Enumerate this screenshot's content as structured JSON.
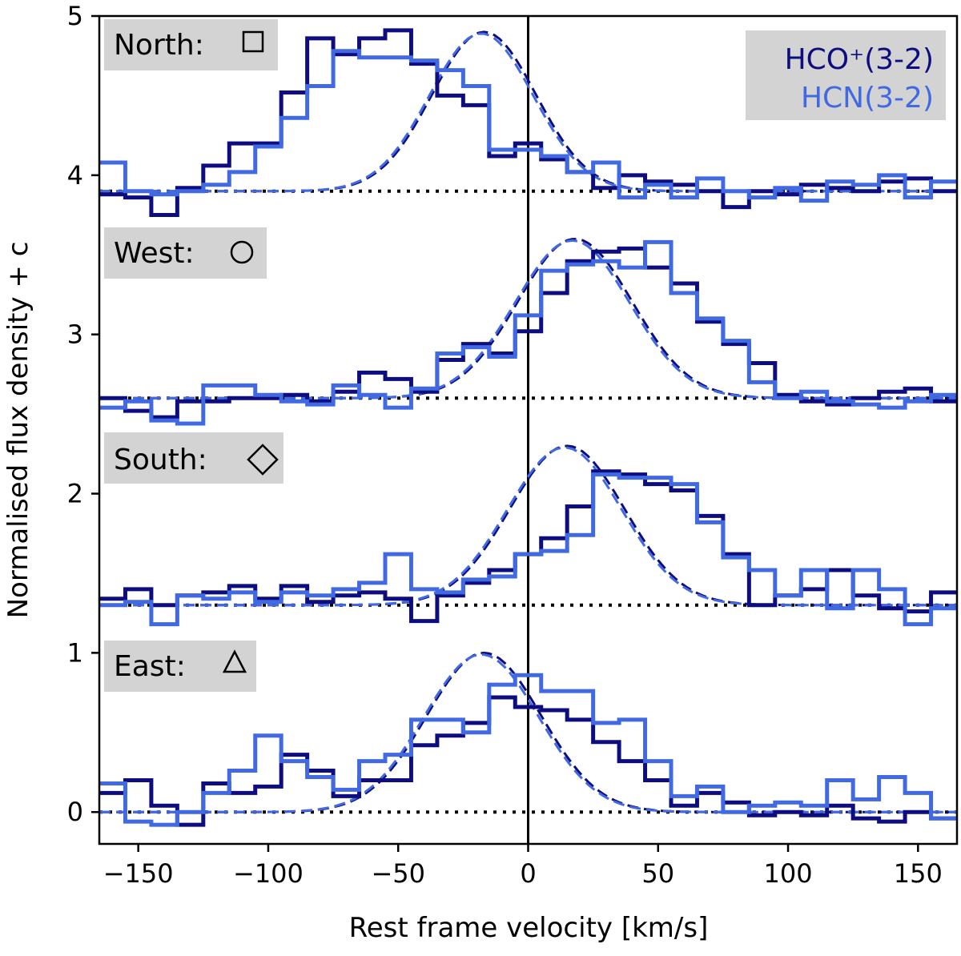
{
  "chart_data": {
    "type": "line",
    "xlabel": "Rest frame velocity [km/s]",
    "ylabel": "Normalised flux density + c",
    "xlim": [
      -165,
      165
    ],
    "ylim": [
      -0.2,
      5.0
    ],
    "xticks": [
      -150,
      -100,
      -50,
      0,
      50,
      100,
      150
    ],
    "xtick_labels": [
      "−150",
      "−100",
      "−50",
      "0",
      "50",
      "100",
      "150"
    ],
    "yticks": [
      0,
      1,
      2,
      3,
      4,
      5
    ],
    "ytick_labels": [
      "0",
      "1",
      "2",
      "3",
      "4",
      "5"
    ],
    "vertical_line_x": 0,
    "legend": {
      "placement": "top-right",
      "entries": [
        {
          "label": "HCO⁺(3-2)",
          "color": "#0d0d80"
        },
        {
          "label": "HCN(3-2)",
          "color": "#4169e1"
        }
      ]
    },
    "colors": {
      "hco": "#0d0d80",
      "hcn": "#4169e1",
      "label_box": "#d3d3d3"
    },
    "bin_edges": [
      -165,
      -155,
      -145,
      -135,
      -125,
      -115,
      -105,
      -95,
      -85,
      -75,
      -65,
      -55,
      -45,
      -35,
      -25,
      -15,
      -5,
      5,
      15,
      25,
      35,
      45,
      55,
      65,
      75,
      85,
      95,
      105,
      115,
      125,
      135,
      145,
      155,
      165
    ],
    "panels": [
      {
        "region": "North",
        "marker": "□",
        "baseline": 3.9,
        "hco_values": [
          3.88,
          3.86,
          3.75,
          3.92,
          4.06,
          4.2,
          4.2,
          4.52,
          4.86,
          4.76,
          4.86,
          4.91,
          4.7,
          4.5,
          4.44,
          4.12,
          4.2,
          4.1,
          4.02,
          3.92,
          4.0,
          3.96,
          3.94,
          3.9,
          3.8,
          3.9,
          3.88,
          3.94,
          3.92,
          3.9,
          3.96,
          3.98,
          3.9
        ],
        "hcn_values": [
          4.08,
          3.9,
          3.88,
          3.9,
          3.94,
          4.02,
          4.18,
          4.36,
          4.56,
          4.78,
          4.74,
          4.74,
          4.72,
          4.66,
          4.56,
          4.16,
          4.16,
          4.12,
          4.02,
          4.08,
          3.86,
          3.94,
          3.86,
          3.98,
          3.9,
          3.86,
          3.92,
          3.84,
          3.96,
          3.94,
          4.0,
          3.86,
          3.96
        ],
        "fit_peak_x": -17,
        "fit_amplitude": 1.0,
        "fit_sigma": 20
      },
      {
        "region": "West",
        "marker": "○",
        "baseline": 2.6,
        "hco_values": [
          2.6,
          2.52,
          2.48,
          2.58,
          2.58,
          2.6,
          2.6,
          2.62,
          2.58,
          2.64,
          2.76,
          2.72,
          2.64,
          2.84,
          2.94,
          2.88,
          3.02,
          3.26,
          3.46,
          3.52,
          3.54,
          3.42,
          3.32,
          3.08,
          2.94,
          2.82,
          2.62,
          2.58,
          2.56,
          2.6,
          2.64,
          2.66,
          2.58
        ],
        "hcn_values": [
          2.54,
          2.58,
          2.46,
          2.44,
          2.68,
          2.68,
          2.62,
          2.58,
          2.56,
          2.68,
          2.62,
          2.54,
          2.66,
          2.88,
          2.92,
          2.86,
          3.12,
          3.4,
          3.44,
          3.46,
          3.42,
          3.58,
          3.26,
          3.1,
          2.96,
          2.7,
          2.6,
          2.64,
          2.58,
          2.56,
          2.54,
          2.58,
          2.62
        ],
        "fit_peak_x": 18,
        "fit_amplitude": 1.0,
        "fit_sigma": 22
      },
      {
        "region": "South",
        "marker": "◇",
        "baseline": 1.3,
        "hco_values": [
          1.34,
          1.4,
          1.3,
          1.36,
          1.38,
          1.42,
          1.34,
          1.42,
          1.32,
          1.36,
          1.38,
          1.34,
          1.2,
          1.36,
          1.44,
          1.52,
          1.62,
          1.72,
          1.92,
          2.14,
          2.12,
          2.06,
          2.02,
          1.86,
          1.62,
          1.3,
          1.36,
          1.4,
          1.52,
          1.36,
          1.28,
          1.26,
          1.38
        ],
        "hcn_values": [
          1.3,
          1.32,
          1.18,
          1.36,
          1.34,
          1.38,
          1.32,
          1.38,
          1.36,
          1.4,
          1.44,
          1.62,
          1.4,
          1.38,
          1.46,
          1.48,
          1.62,
          1.64,
          1.74,
          2.12,
          2.1,
          2.1,
          2.06,
          1.82,
          1.6,
          1.52,
          1.36,
          1.52,
          1.28,
          1.52,
          1.4,
          1.18,
          1.28
        ],
        "fit_peak_x": 15,
        "fit_amplitude": 1.0,
        "fit_sigma": 22
      },
      {
        "region": "East",
        "marker": "△",
        "baseline": 0.0,
        "hco_values": [
          0.12,
          0.2,
          0.04,
          -0.08,
          0.18,
          0.12,
          0.16,
          0.36,
          0.26,
          0.1,
          0.2,
          0.2,
          0.42,
          0.48,
          0.56,
          0.72,
          0.66,
          0.64,
          0.58,
          0.44,
          0.32,
          0.2,
          0.04,
          0.12,
          0.06,
          -0.02,
          0.0,
          -0.02,
          0.04,
          -0.04,
          -0.06,
          0.0,
          -0.04
        ],
        "hcn_values": [
          0.18,
          -0.06,
          -0.08,
          0.0,
          0.12,
          0.26,
          0.48,
          0.32,
          0.22,
          0.14,
          0.32,
          0.36,
          0.58,
          0.58,
          0.5,
          0.8,
          0.86,
          0.76,
          0.76,
          0.56,
          0.58,
          0.32,
          0.1,
          0.16,
          0.0,
          0.04,
          0.06,
          0.04,
          0.2,
          0.08,
          0.22,
          0.12,
          -0.04
        ]
      }
    ],
    "east_fit": {
      "peak_x": -17,
      "amplitude": 1.0,
      "sigma": 22
    }
  }
}
